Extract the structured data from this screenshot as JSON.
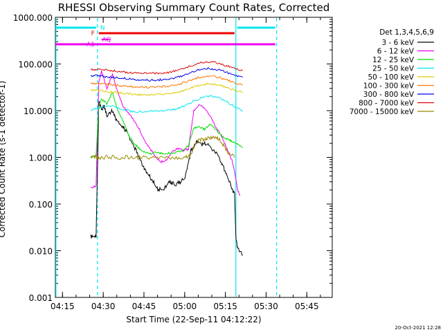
{
  "chart_data": {
    "type": "line",
    "title": "RHESSI Observing Summary Count Rates, Corrected",
    "xlabel": "Start Time (22-Sep-11 04:12:22)",
    "ylabel": "Corrected Count Rate (s-1 detector-1)",
    "x_ticks": [
      "04:15",
      "04:30",
      "04:45",
      "05:00",
      "05:15",
      "05:30",
      "05:45"
    ],
    "y_ticks": [
      "0.001",
      "0.010",
      "0.100",
      "1.000",
      "10.000",
      "100.000",
      "1000.000"
    ],
    "y_scale": "log",
    "ylim": [
      0.001,
      1000
    ],
    "xlim_minutes": [
      0,
      102
    ],
    "grid": false,
    "legend_title": "Det 1,3,4,5,6,9",
    "legend_position": "right",
    "date_stamp": "20-Oct-2021 12:28",
    "flags": [
      {
        "label": "N",
        "color": "#00e5ee",
        "segments": [
          [
            0,
            15
          ],
          [
            67,
            81
          ]
        ]
      },
      {
        "label": "F",
        "color": "#ee0000",
        "segments": [
          [
            16,
            66
          ]
        ]
      },
      {
        "label": "AQ",
        "color": "#ee00ee",
        "segments": [
          [
            17,
            20
          ]
        ]
      },
      {
        "label": "A1",
        "color": "#ee00ee",
        "segments": [
          [
            0,
            81
          ]
        ]
      }
    ],
    "vlines": [
      {
        "x": 15.5,
        "color": "#00e5ee",
        "style": "dashed"
      },
      {
        "x": 66.5,
        "color": "#00e5ee",
        "style": "solid"
      },
      {
        "x": 81.5,
        "color": "#00e5ee",
        "style": "dashed"
      },
      {
        "x": 0.2,
        "color": "#00e5ee",
        "style": "solid"
      }
    ],
    "series": [
      {
        "name": "3 - 6 keV",
        "color": "#000000",
        "x": [
          13,
          15,
          16,
          17,
          18,
          19,
          21,
          22,
          24,
          26,
          28,
          30,
          32,
          34,
          36,
          38,
          40,
          42,
          44,
          46,
          48,
          50,
          52,
          54,
          56,
          58,
          60,
          62,
          64,
          66,
          66.5,
          67,
          69
        ],
        "y": [
          0.02,
          0.02,
          15,
          11,
          12,
          8,
          10,
          7,
          5,
          3.8,
          2.2,
          1.3,
          0.7,
          0.45,
          0.3,
          0.2,
          0.22,
          0.3,
          0.26,
          0.3,
          0.4,
          1.4,
          2.2,
          1.9,
          2.0,
          1.4,
          1.1,
          0.6,
          0.3,
          0.16,
          0.02,
          0.012,
          0.008
        ]
      },
      {
        "name": "6 - 12 keV",
        "color": "#ee00ee",
        "x": [
          13,
          15,
          16,
          17,
          19,
          21,
          23,
          25,
          27,
          29,
          31,
          33,
          35,
          37,
          39,
          41,
          43,
          45,
          47,
          49,
          51,
          53,
          55,
          57,
          59,
          61,
          63,
          65,
          66,
          67,
          68
        ],
        "y": [
          0.22,
          0.25,
          40,
          70,
          30,
          60,
          25,
          12,
          9,
          6,
          4,
          2.2,
          1.5,
          1.0,
          0.8,
          0.9,
          1.3,
          1.6,
          1.4,
          1.5,
          10,
          14,
          11,
          8,
          4.5,
          3,
          1.6,
          0.9,
          0.5,
          0.22,
          0.15
        ]
      },
      {
        "name": "12 - 25 keV",
        "color": "#00dd00",
        "x": [
          13,
          15,
          16,
          17,
          19,
          21,
          23,
          25,
          27,
          29,
          31,
          33,
          35,
          37,
          39,
          41,
          43,
          45,
          47,
          49,
          51,
          53,
          55,
          57,
          59,
          61,
          63,
          65,
          67,
          69
        ],
        "y": [
          1.0,
          1.1,
          12,
          18,
          14,
          25,
          10,
          6,
          3,
          2,
          1.5,
          1.3,
          1.2,
          1.3,
          1.2,
          1.2,
          1.25,
          1.3,
          1.4,
          1.8,
          4.2,
          4.5,
          4.0,
          5.2,
          4.0,
          3.0,
          2.5,
          2.2,
          1.9,
          1.6
        ]
      },
      {
        "name": "25 - 50 keV",
        "color": "#00e5ee",
        "x": [
          13,
          15,
          18,
          21,
          24,
          27,
          30,
          33,
          36,
          39,
          42,
          45,
          48,
          51,
          54,
          57,
          60,
          63,
          66,
          69
        ],
        "y": [
          10,
          11,
          12,
          13,
          11,
          10,
          9.5,
          9.5,
          9.8,
          9.8,
          10.5,
          11,
          13,
          16,
          19,
          21,
          19,
          16,
          12,
          10
        ]
      },
      {
        "name": "50 - 100 keV",
        "color": "#ddcc00",
        "x": [
          13,
          15,
          18,
          21,
          24,
          27,
          30,
          33,
          36,
          39,
          42,
          45,
          48,
          51,
          54,
          57,
          60,
          63,
          66,
          69
        ],
        "y": [
          28,
          27,
          26,
          25,
          24,
          23,
          22,
          22,
          22,
          22.5,
          23.5,
          25,
          28,
          32,
          36,
          38,
          36,
          32,
          28,
          25
        ]
      },
      {
        "name": "100 - 300 keV",
        "color": "#ff7700",
        "x": [
          13,
          15,
          18,
          21,
          24,
          27,
          30,
          33,
          36,
          39,
          42,
          45,
          48,
          51,
          54,
          57,
          60,
          63,
          66,
          69
        ],
        "y": [
          40,
          38,
          37,
          36,
          34,
          33,
          32,
          32,
          32,
          33,
          34,
          36,
          41,
          48,
          54,
          56,
          52,
          46,
          40,
          36
        ]
      },
      {
        "name": "300 - 800 keV",
        "color": "#0000ee",
        "x": [
          13,
          15,
          18,
          21,
          24,
          27,
          30,
          33,
          36,
          39,
          42,
          45,
          48,
          51,
          54,
          57,
          60,
          63,
          66,
          69
        ],
        "y": [
          55,
          56,
          54,
          52,
          50,
          48,
          46,
          45,
          45,
          46,
          48,
          52,
          60,
          70,
          78,
          80,
          75,
          66,
          58,
          52
        ]
      },
      {
        "name": "800 - 7000 keV",
        "color": "#dd0000",
        "x": [
          13,
          15,
          18,
          21,
          24,
          27,
          30,
          33,
          36,
          39,
          42,
          45,
          48,
          51,
          54,
          57,
          60,
          63,
          66,
          69
        ],
        "y": [
          75,
          76,
          74,
          72,
          69,
          66,
          64,
          63,
          63,
          64,
          67,
          72,
          82,
          96,
          108,
          112,
          104,
          92,
          80,
          72
        ]
      },
      {
        "name": "7000 - 15000 keV",
        "color": "#998800",
        "x": [
          13,
          15,
          16,
          20,
          24,
          28,
          32,
          36,
          40,
          44,
          48,
          50,
          52,
          54,
          56,
          58,
          60,
          62,
          64,
          66
        ],
        "y": [
          1.0,
          1.0,
          1.0,
          1.0,
          1.0,
          1.0,
          1.0,
          1.0,
          1.0,
          1.0,
          1.0,
          1.2,
          2.2,
          2.4,
          2.6,
          2.8,
          2.5,
          1.8,
          1.2,
          1.0
        ]
      }
    ]
  }
}
